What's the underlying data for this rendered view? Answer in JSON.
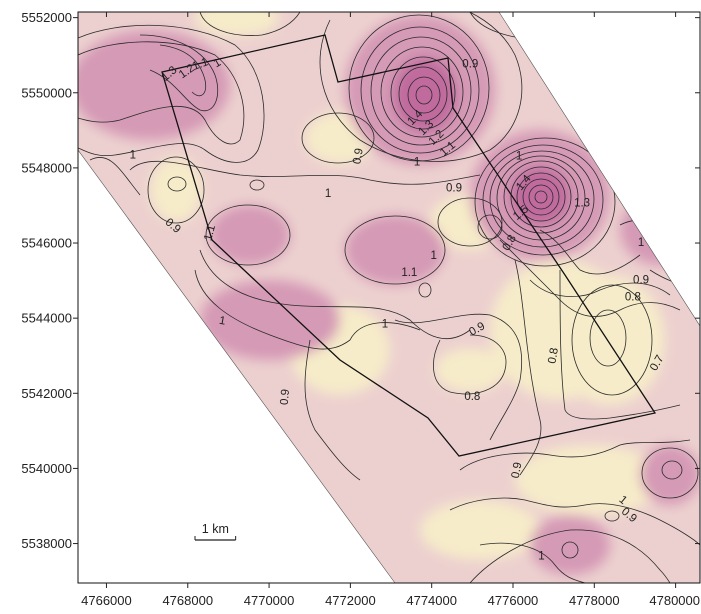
{
  "map": {
    "colors": {
      "low": "#f6ecc9",
      "mid": "#ecd0cf",
      "high": "#d59ab6",
      "peak": "#c06a9e",
      "contour": "#2a2a2a",
      "boundary": "#111111"
    }
  },
  "axes": {
    "x_ticks": [
      {
        "value": 4766000,
        "label": "4766000"
      },
      {
        "value": 4768000,
        "label": "4768000"
      },
      {
        "value": 4770000,
        "label": "4770000"
      },
      {
        "value": 4772000,
        "label": "4772000"
      },
      {
        "value": 4774000,
        "label": "4774000"
      },
      {
        "value": 4776000,
        "label": "4776000"
      },
      {
        "value": 4778000,
        "label": "4778000"
      },
      {
        "value": 4780000,
        "label": "4780000"
      }
    ],
    "y_ticks": [
      {
        "value": 5552000,
        "label": "5552000"
      },
      {
        "value": 5550000,
        "label": "5550000"
      },
      {
        "value": 5548000,
        "label": "5548000"
      },
      {
        "value": 5546000,
        "label": "5546000"
      },
      {
        "value": 5544000,
        "label": "5544000"
      },
      {
        "value": 5542000,
        "label": "5542000"
      },
      {
        "value": 5540000,
        "label": "5540000"
      },
      {
        "value": 5538000,
        "label": "5538000"
      }
    ],
    "x_range": [
      4765300,
      4780600
    ],
    "y_range": [
      5536950,
      5552150
    ]
  },
  "scale_bar": {
    "label": "1 km",
    "length_m": 1000
  },
  "contour_labels": [
    {
      "text": "1.3",
      "x": 4767550,
      "y": 5550500,
      "angle": 40
    },
    {
      "text": "1.2",
      "x": 4767980,
      "y": 5550560,
      "angle": 35
    },
    {
      "text": "1.1",
      "x": 4768310,
      "y": 5550750,
      "angle": 20
    },
    {
      "text": "1",
      "x": 4768730,
      "y": 5550780,
      "angle": 30
    },
    {
      "text": "1",
      "x": 4766650,
      "y": 5548330,
      "angle": 0
    },
    {
      "text": "0.9",
      "x": 4767630,
      "y": 5546450,
      "angle": -40
    },
    {
      "text": "1.1",
      "x": 4768550,
      "y": 5546270,
      "angle": 75
    },
    {
      "text": "1",
      "x": 4768850,
      "y": 5543920,
      "angle": -10
    },
    {
      "text": "1",
      "x": 4771450,
      "y": 5547300,
      "angle": 0
    },
    {
      "text": "0.9",
      "x": 4772200,
      "y": 5548310,
      "angle": 80
    },
    {
      "text": "1.4",
      "x": 4773600,
      "y": 5549330,
      "angle": 45
    },
    {
      "text": "1.3",
      "x": 4773870,
      "y": 5549060,
      "angle": 45
    },
    {
      "text": "1.2",
      "x": 4774120,
      "y": 5548800,
      "angle": 45
    },
    {
      "text": "1.1",
      "x": 4774400,
      "y": 5548500,
      "angle": 40
    },
    {
      "text": "1",
      "x": 4773640,
      "y": 5548150,
      "angle": 0
    },
    {
      "text": "0.9",
      "x": 4774950,
      "y": 5550750,
      "angle": 0
    },
    {
      "text": "0.9",
      "x": 4774550,
      "y": 5547450,
      "angle": 0
    },
    {
      "text": "1.1",
      "x": 4773450,
      "y": 5545200,
      "angle": 0
    },
    {
      "text": "1",
      "x": 4774050,
      "y": 5545650,
      "angle": 0
    },
    {
      "text": "1",
      "x": 4772850,
      "y": 5543830,
      "angle": 0
    },
    {
      "text": "0.9",
      "x": 4775120,
      "y": 5543700,
      "angle": 30
    },
    {
      "text": "0.8",
      "x": 4775920,
      "y": 5546000,
      "angle": 60
    },
    {
      "text": "1",
      "x": 4776150,
      "y": 5548300,
      "angle": 0
    },
    {
      "text": "1.4",
      "x": 4776270,
      "y": 5547600,
      "angle": 50
    },
    {
      "text": "1.5",
      "x": 4776200,
      "y": 5546800,
      "angle": 40
    },
    {
      "text": "1.3",
      "x": 4777700,
      "y": 5547050,
      "angle": 0
    },
    {
      "text": "1",
      "x": 4779150,
      "y": 5546000,
      "angle": 0
    },
    {
      "text": "0.9",
      "x": 4779150,
      "y": 5545000,
      "angle": 0
    },
    {
      "text": "0.8",
      "x": 4778950,
      "y": 5544550,
      "angle": 0
    },
    {
      "text": "0.8",
      "x": 4777000,
      "y": 5543000,
      "angle": 80
    },
    {
      "text": "0.7",
      "x": 4779550,
      "y": 5542800,
      "angle": 60
    },
    {
      "text": "0.8",
      "x": 4775000,
      "y": 5541900,
      "angle": 0
    },
    {
      "text": "0.9",
      "x": 4770400,
      "y": 5541900,
      "angle": 85
    },
    {
      "text": "0.9",
      "x": 4776100,
      "y": 5539950,
      "angle": 80
    },
    {
      "text": "1",
      "x": 4778700,
      "y": 5539150,
      "angle": -40
    },
    {
      "text": "0.9",
      "x": 4778850,
      "y": 5538750,
      "angle": -40
    },
    {
      "text": "1",
      "x": 4776700,
      "y": 5537660,
      "angle": 0
    }
  ]
}
